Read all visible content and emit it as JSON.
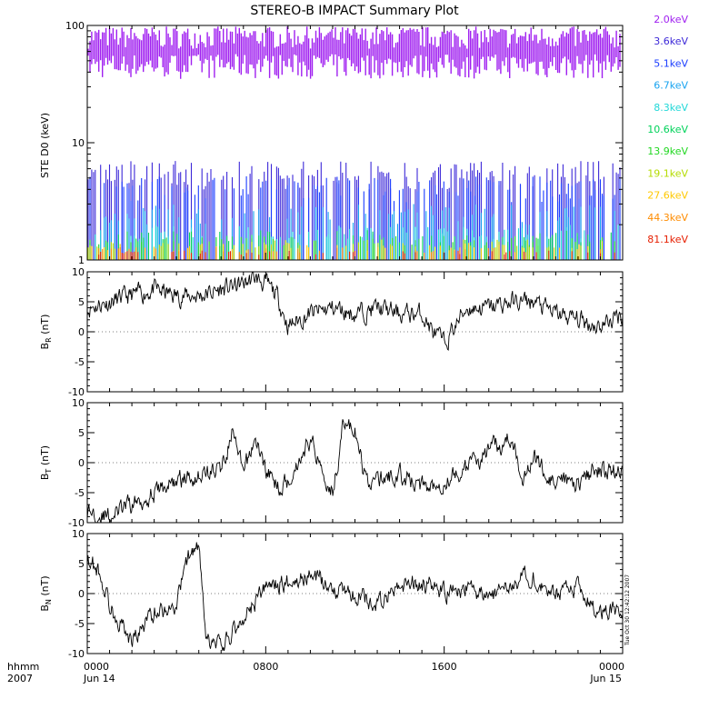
{
  "chart_data": [
    {
      "type": "spectrogram-lines",
      "title": "STEREO-B IMPACT Summary Plot",
      "ylabel": "STE D0 (keV)",
      "yscale": "log",
      "ylim": [
        1,
        100
      ],
      "ytick_labels": [
        "1",
        "10",
        "100"
      ],
      "series": [
        {
          "name": "2.0keV",
          "color": "#A020F0",
          "band": [
            35,
            98
          ]
        },
        {
          "name": "3.6keV",
          "color": "#3C28D8",
          "band": [
            1,
            7
          ]
        },
        {
          "name": "5.1keV",
          "color": "#1A3CFF",
          "band": [
            1,
            5.2
          ]
        },
        {
          "name": "6.7keV",
          "color": "#17A3F0",
          "band": [
            1,
            3.0
          ]
        },
        {
          "name": "8.3keV",
          "color": "#22D8D8",
          "band": [
            1,
            2.0
          ]
        },
        {
          "name": "10.6keV",
          "color": "#00D25A",
          "band": [
            1,
            1.8
          ]
        },
        {
          "name": "13.9keV",
          "color": "#22D822",
          "band": [
            1,
            1.6
          ]
        },
        {
          "name": "19.1keV",
          "color": "#B4DC00",
          "band": [
            1,
            1.5
          ]
        },
        {
          "name": "27.6keV",
          "color": "#FFC800",
          "band": [
            1,
            1.4
          ]
        },
        {
          "name": "44.3keV",
          "color": "#FF8C00",
          "band": [
            1,
            1.3
          ]
        },
        {
          "name": "81.1keV",
          "color": "#E61E00",
          "band": [
            1,
            1.2
          ]
        }
      ]
    },
    {
      "type": "line",
      "ylabel_main": "B",
      "ylabel_sub": "R",
      "ylabel_unit": " (nT)",
      "ylim": [
        -10,
        10
      ],
      "ytick_labels": [
        "10",
        "5",
        "0",
        "-5",
        "-10"
      ],
      "x": [
        0,
        1,
        2,
        3,
        4,
        5,
        6,
        7,
        7.5,
        8,
        8.5,
        9,
        10,
        11,
        12,
        13,
        14,
        15,
        15.5,
        16,
        17,
        18,
        19,
        20,
        21,
        22,
        23,
        24
      ],
      "y": [
        4,
        5,
        6,
        7,
        6,
        6,
        7,
        8,
        9,
        8,
        6,
        1,
        3,
        4,
        3,
        4,
        3,
        3,
        0,
        -2,
        4,
        4,
        5,
        5,
        3,
        2,
        1,
        3
      ]
    },
    {
      "type": "line",
      "ylabel_main": "B",
      "ylabel_sub": "T",
      "ylabel_unit": " (nT)",
      "ylim": [
        -10,
        10
      ],
      "ytick_labels": [
        "10",
        "5",
        "0",
        "-5",
        "-10"
      ],
      "x": [
        0,
        1,
        2,
        3,
        4,
        5,
        6,
        6.5,
        7,
        7.5,
        8,
        8.5,
        9,
        10,
        11,
        11.5,
        12,
        12.5,
        13,
        14,
        15,
        16,
        17,
        18,
        19,
        19.5,
        20,
        21,
        22,
        23,
        24
      ],
      "y": [
        -8,
        -9,
        -7,
        -5,
        -3,
        -2,
        -1,
        5,
        -2,
        4,
        -1,
        -4,
        -3,
        4,
        -5,
        7,
        5,
        -3,
        -3,
        -2,
        -4,
        -3,
        -1,
        2,
        4,
        -2,
        1,
        -4,
        -3,
        -1,
        -2
      ]
    },
    {
      "type": "line",
      "ylabel_main": "B",
      "ylabel_sub": "N",
      "ylabel_unit": " (nT)",
      "ylim": [
        -10,
        10
      ],
      "ytick_labels": [
        "10",
        "5",
        "0",
        "-5",
        "-10"
      ],
      "xtick_labels": [
        "0000",
        "0800",
        "1600",
        "0000"
      ],
      "x": [
        0,
        0.5,
        1,
        2,
        3,
        4,
        4.5,
        5,
        5.3,
        6,
        7,
        8,
        9,
        10,
        11,
        12,
        13,
        14,
        15,
        16,
        17,
        18,
        19,
        20,
        21,
        22,
        23,
        24
      ],
      "y": [
        6,
        4,
        -2,
        -8,
        -3,
        -2,
        6,
        8,
        -8,
        -9,
        -4,
        1,
        2,
        3,
        1,
        0,
        -2,
        1,
        2,
        0,
        1,
        -1,
        2,
        3,
        0,
        1,
        -3,
        -2
      ]
    }
  ],
  "x_axis": {
    "label_left_1": "hhmm",
    "label_left_2": "2007",
    "date_start": "Jun 14",
    "date_end": "Jun 15"
  },
  "timestamp": "Tue Oct 30 12:42:12 2007"
}
